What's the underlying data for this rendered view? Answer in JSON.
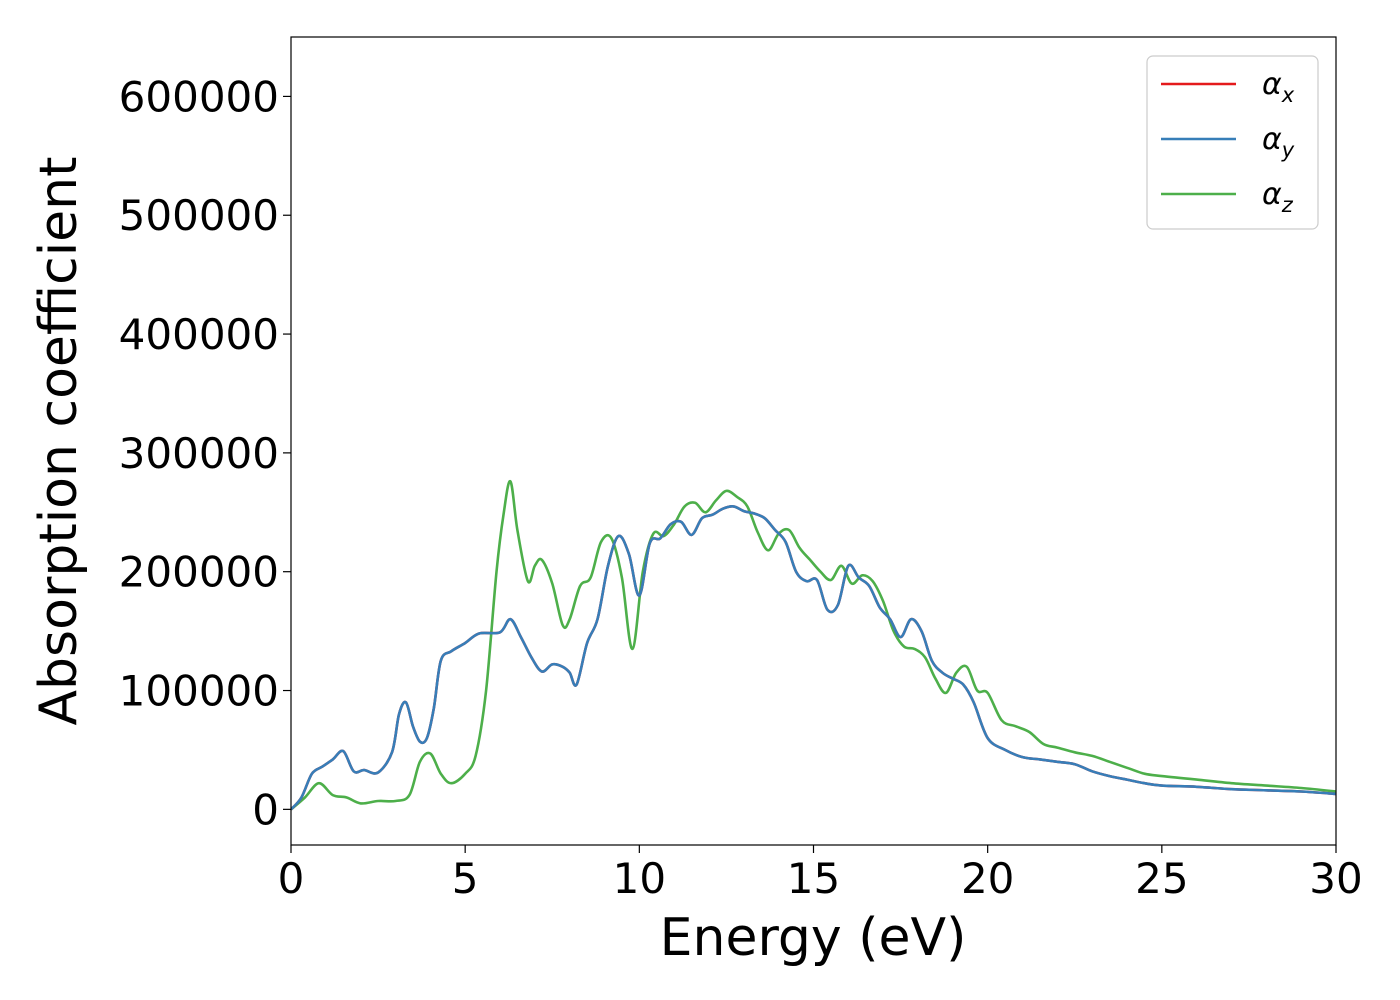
{
  "chart_data": {
    "type": "line",
    "title": "",
    "xlabel": "Energy (eV)",
    "ylabel": "Absorption coefficient",
    "xlim": [
      0,
      30
    ],
    "ylim": [
      -30000,
      650000
    ],
    "xticks": [
      0,
      5,
      10,
      15,
      20,
      25,
      30
    ],
    "xtick_labels": [
      "0",
      "5",
      "10",
      "15",
      "20",
      "25",
      "30"
    ],
    "yticks": [
      0,
      100000,
      200000,
      300000,
      400000,
      500000,
      600000
    ],
    "ytick_labels": [
      "0",
      "100000",
      "200000",
      "300000",
      "400000",
      "500000",
      "600000"
    ],
    "grid": false,
    "legend_position": "top-right",
    "colors": {
      "x": "#e41a1c",
      "y": "#377eb8",
      "z": "#4daf4a"
    },
    "legend": [
      {
        "symbol": "α",
        "sub": "x",
        "color": "#e41a1c"
      },
      {
        "symbol": "α",
        "sub": "y",
        "color": "#377eb8"
      },
      {
        "symbol": "α",
        "sub": "z",
        "color": "#4daf4a"
      }
    ],
    "series": [
      {
        "key": "x",
        "x": [
          0,
          0.3,
          0.6,
          0.9,
          1.2,
          1.5,
          1.8,
          2.1,
          2.5,
          2.9,
          3.1,
          3.3,
          3.5,
          3.7,
          3.9,
          4.1,
          4.3,
          4.6,
          5.0,
          5.4,
          6.0,
          6.3,
          6.6,
          6.9,
          7.2,
          7.5,
          7.8,
          8.0,
          8.2,
          8.5,
          8.8,
          9.1,
          9.4,
          9.7,
          10.0,
          10.3,
          10.6,
          10.9,
          11.2,
          11.5,
          11.8,
          12.1,
          12.4,
          12.7,
          13.0,
          13.3,
          13.6,
          13.9,
          14.2,
          14.5,
          14.8,
          15.1,
          15.4,
          15.7,
          16.0,
          16.3,
          16.6,
          16.9,
          17.2,
          17.5,
          17.8,
          18.1,
          18.4,
          18.7,
          19.0,
          19.3,
          19.6,
          20.0,
          20.5,
          21.0,
          21.5,
          22.0,
          22.5,
          23.0,
          23.5,
          24.0,
          24.5,
          25.0,
          26.0,
          27.0,
          28.0,
          29.0,
          30.0
        ],
        "y": [
          0,
          10000,
          30000,
          36000,
          42000,
          49000,
          32000,
          33000,
          31000,
          48000,
          80000,
          90000,
          70000,
          57000,
          60000,
          85000,
          125000,
          133000,
          140000,
          148000,
          149000,
          160000,
          145000,
          128000,
          116000,
          122000,
          120000,
          115000,
          105000,
          140000,
          160000,
          205000,
          230000,
          215000,
          180000,
          224000,
          228000,
          240000,
          242000,
          231000,
          245000,
          248000,
          253000,
          255000,
          251000,
          249000,
          245000,
          235000,
          225000,
          200000,
          192000,
          193000,
          168000,
          172000,
          205000,
          195000,
          188000,
          170000,
          160000,
          145000,
          160000,
          150000,
          125000,
          115000,
          110000,
          105000,
          90000,
          60000,
          50000,
          44000,
          42000,
          40000,
          38000,
          32000,
          28000,
          25000,
          22000,
          20000,
          19000,
          17000,
          16000,
          15000,
          13000
        ]
      },
      {
        "key": "y",
        "x": [
          0,
          0.3,
          0.6,
          0.9,
          1.2,
          1.5,
          1.8,
          2.1,
          2.5,
          2.9,
          3.1,
          3.3,
          3.5,
          3.7,
          3.9,
          4.1,
          4.3,
          4.6,
          5.0,
          5.4,
          6.0,
          6.3,
          6.6,
          6.9,
          7.2,
          7.5,
          7.8,
          8.0,
          8.2,
          8.5,
          8.8,
          9.1,
          9.4,
          9.7,
          10.0,
          10.3,
          10.6,
          10.9,
          11.2,
          11.5,
          11.8,
          12.1,
          12.4,
          12.7,
          13.0,
          13.3,
          13.6,
          13.9,
          14.2,
          14.5,
          14.8,
          15.1,
          15.4,
          15.7,
          16.0,
          16.3,
          16.6,
          16.9,
          17.2,
          17.5,
          17.8,
          18.1,
          18.4,
          18.7,
          19.0,
          19.3,
          19.6,
          20.0,
          20.5,
          21.0,
          21.5,
          22.0,
          22.5,
          23.0,
          23.5,
          24.0,
          24.5,
          25.0,
          26.0,
          27.0,
          28.0,
          29.0,
          30.0
        ],
        "y": [
          0,
          10000,
          30000,
          36000,
          42000,
          49000,
          32000,
          33000,
          31000,
          48000,
          80000,
          90000,
          70000,
          57000,
          60000,
          85000,
          125000,
          133000,
          140000,
          148000,
          149000,
          160000,
          145000,
          128000,
          116000,
          122000,
          120000,
          115000,
          105000,
          140000,
          160000,
          205000,
          230000,
          215000,
          180000,
          224000,
          228000,
          240000,
          242000,
          231000,
          245000,
          248000,
          253000,
          255000,
          251000,
          249000,
          245000,
          235000,
          225000,
          200000,
          192000,
          193000,
          168000,
          172000,
          205000,
          195000,
          188000,
          170000,
          160000,
          145000,
          160000,
          150000,
          125000,
          115000,
          110000,
          105000,
          90000,
          60000,
          50000,
          44000,
          42000,
          40000,
          38000,
          32000,
          28000,
          25000,
          22000,
          20000,
          19000,
          17000,
          16000,
          15000,
          13000
        ]
      },
      {
        "key": "z",
        "x": [
          0,
          0.4,
          0.8,
          1.2,
          1.6,
          2.0,
          2.5,
          3.0,
          3.4,
          3.7,
          4.0,
          4.3,
          4.6,
          5.0,
          5.3,
          5.6,
          5.9,
          6.1,
          6.3,
          6.5,
          6.8,
          7.0,
          7.2,
          7.5,
          7.8,
          8.0,
          8.3,
          8.6,
          8.9,
          9.2,
          9.5,
          9.8,
          10.1,
          10.4,
          10.7,
          11.0,
          11.3,
          11.6,
          11.9,
          12.2,
          12.5,
          12.8,
          13.1,
          13.4,
          13.7,
          14.0,
          14.3,
          14.6,
          14.9,
          15.2,
          15.5,
          15.8,
          16.1,
          16.4,
          16.7,
          17.0,
          17.3,
          17.6,
          17.9,
          18.2,
          18.5,
          18.8,
          19.1,
          19.4,
          19.7,
          20.0,
          20.4,
          20.8,
          21.2,
          21.6,
          22.0,
          22.5,
          23.0,
          23.5,
          24.0,
          24.5,
          25.0,
          26.0,
          27.0,
          28.0,
          29.0,
          30.0
        ],
        "y": [
          0,
          10000,
          22000,
          12000,
          10000,
          5000,
          7000,
          7000,
          12000,
          40000,
          47000,
          30000,
          22000,
          30000,
          45000,
          100000,
          200000,
          248000,
          276000,
          235000,
          192000,
          205000,
          210000,
          190000,
          155000,
          160000,
          188000,
          195000,
          225000,
          228000,
          195000,
          135000,
          200000,
          232000,
          230000,
          240000,
          255000,
          258000,
          250000,
          260000,
          268000,
          263000,
          255000,
          233000,
          218000,
          232000,
          235000,
          220000,
          210000,
          200000,
          193000,
          205000,
          190000,
          197000,
          192000,
          175000,
          150000,
          137000,
          135000,
          128000,
          110000,
          98000,
          115000,
          120000,
          100000,
          98000,
          75000,
          70000,
          65000,
          55000,
          52000,
          48000,
          45000,
          40000,
          35000,
          30000,
          28000,
          25000,
          22000,
          20000,
          18000,
          15000
        ]
      }
    ]
  }
}
